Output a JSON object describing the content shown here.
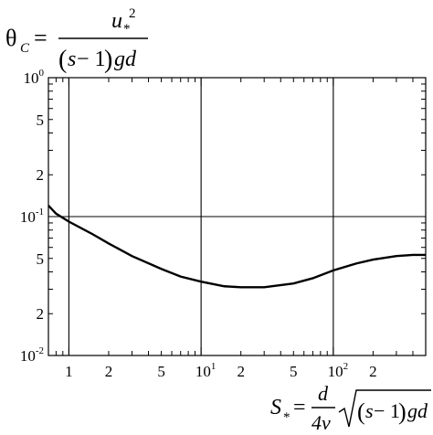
{
  "chart_data": {
    "type": "line",
    "title": "",
    "ylabel": {
      "lhs": "θ",
      "lhs_sub": "C",
      "eq": "=",
      "num": "u",
      "num_sub": "*",
      "num_sup": "2",
      "den_paren_l": "(",
      "den_s": "s",
      "den_minus_one": " − 1",
      "den_paren_r": ")",
      "den_gd": "gd"
    },
    "xlabel": {
      "lhs": "S",
      "lhs_sub": "*",
      "eq": "=",
      "frac_num": "d",
      "frac_den": "4ν",
      "rad_paren_l": "(",
      "rad_s": "s",
      "rad_minus_one": " − 1",
      "rad_paren_r": ")",
      "rad_gd": "gd"
    },
    "x_scale": "log",
    "y_scale": "log",
    "xlim": [
      0.7,
      500
    ],
    "ylim": [
      0.01,
      1
    ],
    "x_ticks": [
      {
        "value": 1,
        "base": "1",
        "sup": "",
        "major": true
      },
      {
        "value": 2,
        "base": "2",
        "sup": "",
        "major": false
      },
      {
        "value": 5,
        "base": "5",
        "sup": "",
        "major": false
      },
      {
        "value": 10,
        "base": "10",
        "sup": "1",
        "major": true
      },
      {
        "value": 20,
        "base": "2",
        "sup": "",
        "major": false
      },
      {
        "value": 50,
        "base": "5",
        "sup": "",
        "major": false
      },
      {
        "value": 100,
        "base": "10",
        "sup": "2",
        "major": true
      },
      {
        "value": 200,
        "base": "2",
        "sup": "",
        "major": false
      }
    ],
    "y_ticks": [
      {
        "value": 1,
        "base": "10",
        "sup": "0",
        "major": true
      },
      {
        "value": 0.5,
        "base": "5",
        "sup": "",
        "major": false
      },
      {
        "value": 0.2,
        "base": "2",
        "sup": "",
        "major": false
      },
      {
        "value": 0.1,
        "base": "10",
        "sup": "-1",
        "major": true
      },
      {
        "value": 0.05,
        "base": "5",
        "sup": "",
        "major": false
      },
      {
        "value": 0.02,
        "base": "2",
        "sup": "",
        "major": false
      },
      {
        "value": 0.01,
        "base": "10",
        "sup": "-2",
        "major": true
      }
    ],
    "grid": "major decades only",
    "series": [
      {
        "x": [
          0.7,
          0.8,
          1,
          1.5,
          2,
          3,
          5,
          7,
          10,
          15,
          20,
          30,
          50,
          70,
          100,
          150,
          200,
          300,
          400,
          500
        ],
        "y": [
          0.12,
          0.105,
          0.092,
          0.075,
          0.064,
          0.052,
          0.042,
          0.037,
          0.034,
          0.0315,
          0.031,
          0.031,
          0.033,
          0.036,
          0.041,
          0.046,
          0.049,
          0.052,
          0.053,
          0.053
        ]
      }
    ]
  }
}
